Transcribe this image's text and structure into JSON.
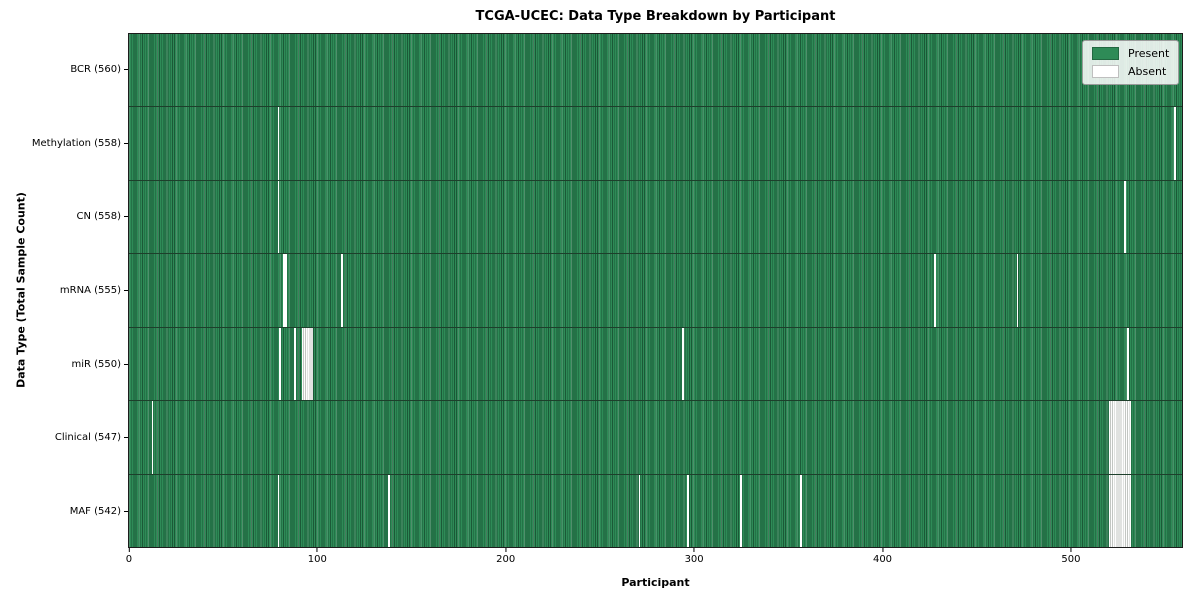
{
  "title": "TCGA-UCEC: Data Type Breakdown by Participant",
  "axes": {
    "xlabel": "Participant",
    "ylabel": "Data Type (Total Sample Count)",
    "x_ticks": [
      0,
      100,
      200,
      300,
      400,
      500
    ]
  },
  "legend": {
    "items": [
      {
        "label": "Present",
        "color": "#2e8b57"
      },
      {
        "label": "Absent",
        "color": "#ffffff"
      }
    ]
  },
  "chart_data": {
    "type": "heatmap",
    "title": "TCGA-UCEC: Data Type Breakdown by Participant",
    "xlabel": "Participant",
    "ylabel": "Data Type (Total Sample Count)",
    "n_participants": 560,
    "colors": {
      "present": "#2e8b57",
      "absent": "#ffffff"
    },
    "legend_position": "upper right",
    "rows": [
      {
        "label": "BCR (560)",
        "data_type": "BCR",
        "present_count": 560,
        "absent_participants": []
      },
      {
        "label": "Methylation (558)",
        "data_type": "Methylation",
        "present_count": 558,
        "absent_participants": [
          79,
          556
        ]
      },
      {
        "label": "CN (558)",
        "data_type": "CN",
        "present_count": 558,
        "absent_participants": [
          79,
          529
        ]
      },
      {
        "label": "mRNA (555)",
        "data_type": "mRNA",
        "present_count": 555,
        "absent_participants": [
          82,
          83,
          113,
          428,
          472
        ]
      },
      {
        "label": "miR (550)",
        "data_type": "miR",
        "present_count": 550,
        "absent_participants": [
          80,
          88,
          92,
          93,
          94,
          95,
          96,
          97,
          294,
          531
        ]
      },
      {
        "label": "Clinical (547)",
        "data_type": "Clinical",
        "present_count": 547,
        "absent_participants": [
          12,
          521,
          522,
          523,
          524,
          525,
          526,
          527,
          528,
          529,
          530,
          531,
          532
        ]
      },
      {
        "label": "MAF (542)",
        "data_type": "MAF",
        "present_count": 542,
        "absent_participants": [
          79,
          138,
          271,
          297,
          325,
          357,
          521,
          522,
          523,
          524,
          525,
          526,
          527,
          528,
          529,
          530,
          531,
          532
        ]
      }
    ]
  }
}
